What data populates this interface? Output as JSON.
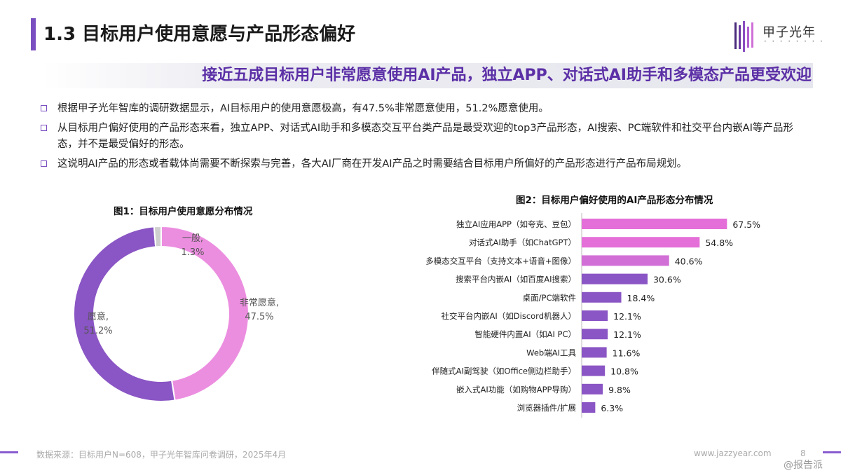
{
  "header": {
    "title": "1.3 目标用户使用意愿与产品形态偏好",
    "logo_text": "甲子光年",
    "subtitle": "接近五成目标用户非常愿意使用AI产品，独立APP、对话式AI助手和多模态产品更受欢迎"
  },
  "bullets": [
    "根据甲子光年智库的调研数据显示，AI目标用户的使用意愿极高，有47.5%非常愿意使用，51.2%愿意使用。",
    "从目标用户偏好使用的产品形态来看，独立APP、对话式AI助手和多模态交互平台类产品是最受欢迎的top3产品形态，AI搜索、PC端软件和社交平台内嵌AI等产品形态，并不是最受偏好的形态。",
    "这说明AI产品的形态或者载体尚需要不断探索与完善，各大AI厂商在开发AI产品之时需要结合目标用户所偏好的产品形态进行产品布局规划。"
  ],
  "chart_data": [
    {
      "type": "pie",
      "title": "图1：目标用户使用意愿分布情况",
      "categories": [
        "非常愿意",
        "愿意",
        "一般"
      ],
      "values": [
        47.5,
        51.2,
        1.3
      ],
      "labels": [
        "47.5%",
        "51.2%",
        "1.3%"
      ],
      "colors": [
        "#ec8ee0",
        "#8a55c4",
        "#cfcfcf"
      ],
      "donut": true
    },
    {
      "type": "bar",
      "orientation": "horizontal",
      "title": "图2：目标用户偏好使用的AI产品形态分布情况",
      "categories": [
        "独立AI应用APP（如夸克、豆包）",
        "对话式AI助手（如ChatGPT）",
        "多模态交互平台（支持文本+语音+图像）",
        "搜索平台内嵌AI（如百度AI搜索）",
        "桌面/PC端软件",
        "社交平台内嵌AI（如Discord机器人）",
        "智能硬件内置AI（如AI PC）",
        "Web端AI工具",
        "伴随式AI副驾驶（如Office侧边栏助手）",
        "嵌入式AI功能（如购物APP导购）",
        "浏览器插件/扩展"
      ],
      "values": [
        67.5,
        54.8,
        40.6,
        30.6,
        18.4,
        12.1,
        12.1,
        11.6,
        10.8,
        9.8,
        6.3
      ],
      "labels": [
        "67.5%",
        "54.8%",
        "40.6%",
        "30.6%",
        "18.4%",
        "12.1%",
        "12.1%",
        "11.6%",
        "10.8%",
        "9.8%",
        "6.3%"
      ],
      "colors": [
        "#e46fd8",
        "#e46fd8",
        "#d26fd6",
        "#8a55c4",
        "#8a55c4",
        "#8a55c4",
        "#8a55c4",
        "#8a55c4",
        "#8a55c4",
        "#8a55c4",
        "#8a55c4"
      ],
      "xlim": [
        0,
        70
      ]
    }
  ],
  "footer": {
    "source": "数据来源：目标用户N=608，甲子光年智库问卷调研，2025年4月",
    "site": "www.jazzyear.com",
    "page": "8",
    "watermark": "@报告派"
  }
}
